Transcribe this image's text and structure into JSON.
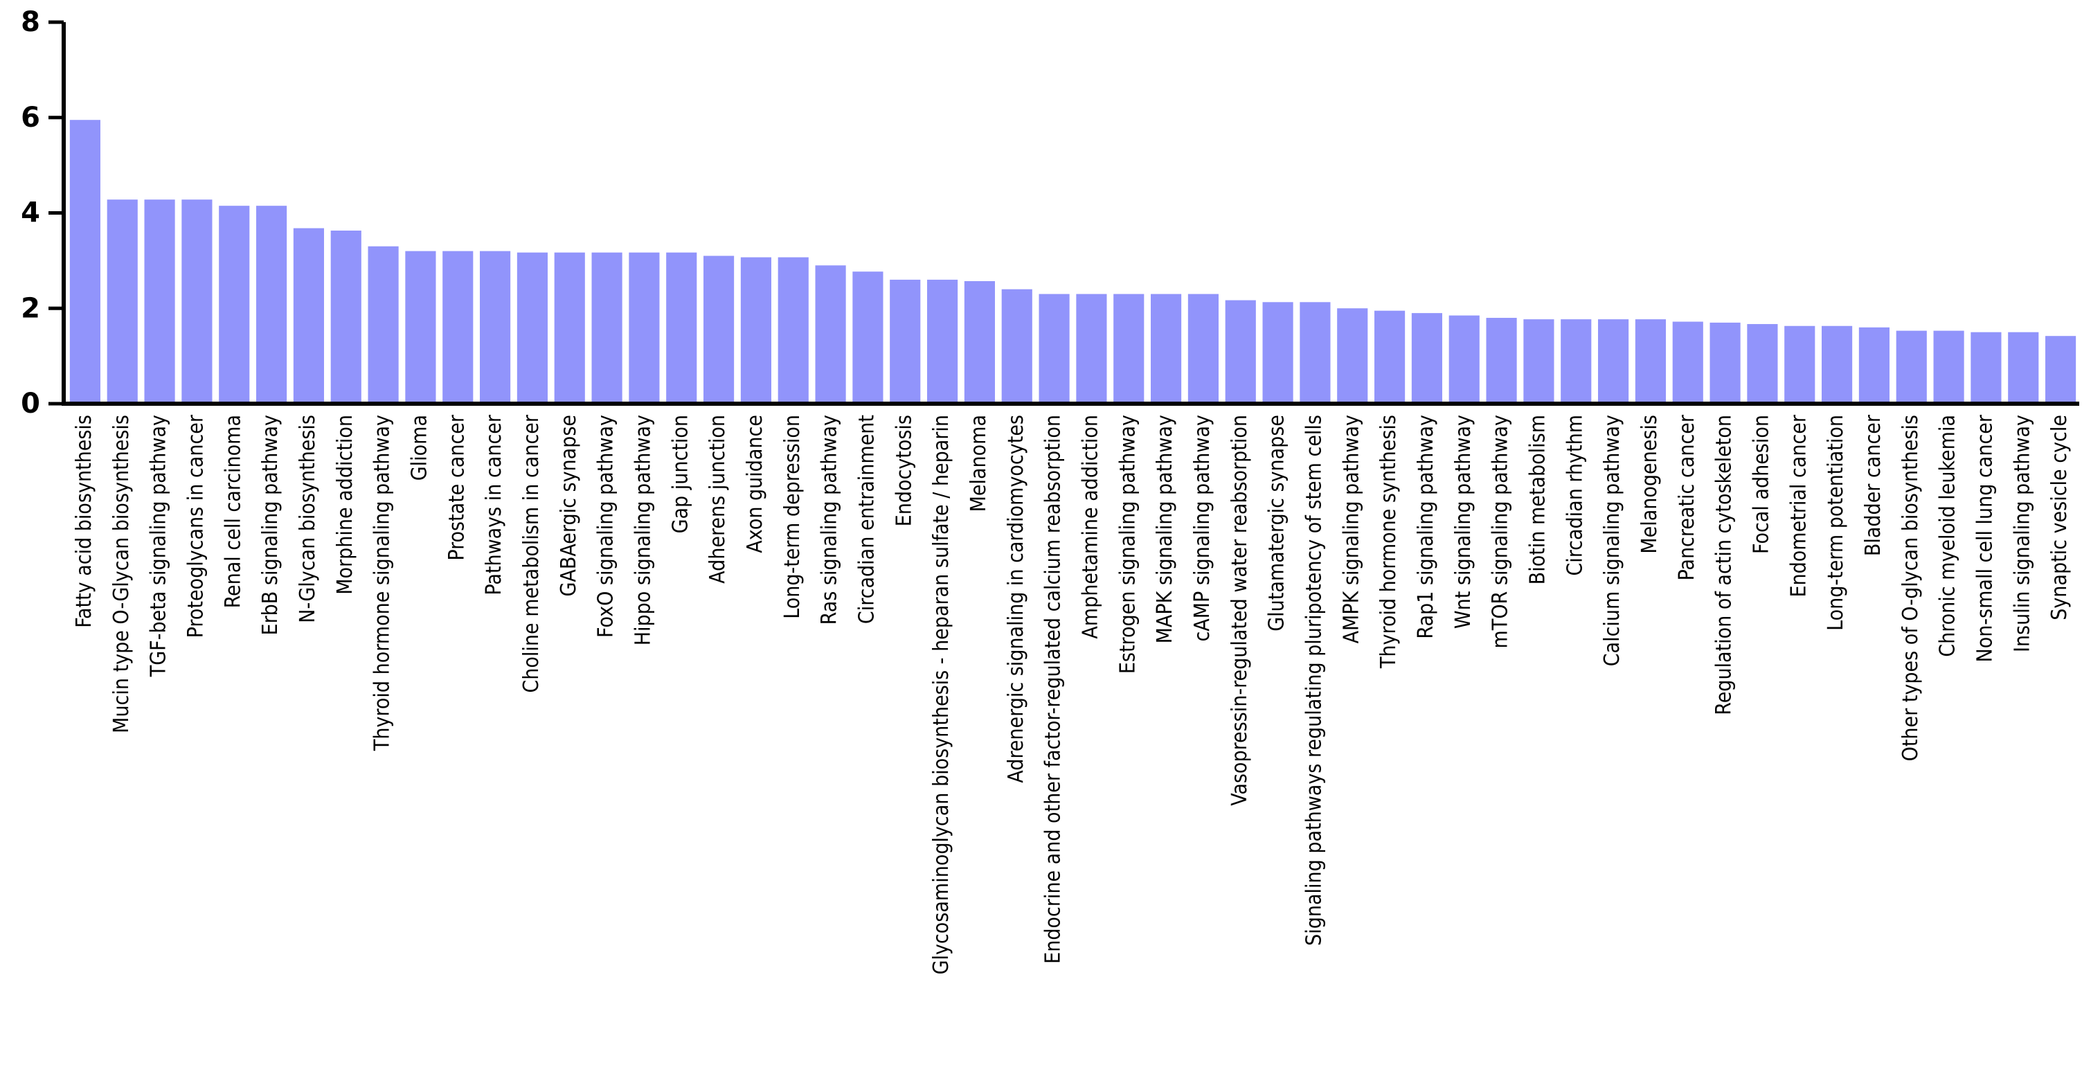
{
  "chart_data": {
    "type": "bar",
    "title": "",
    "xlabel": "",
    "ylabel": "",
    "ylim": [
      0,
      8
    ],
    "yticks": [
      0,
      2,
      4,
      6,
      8
    ],
    "bar_color": "#9194fb",
    "grid": false,
    "categories": [
      "Fatty acid biosynthesis",
      "Mucin type O-Glycan biosynthesis",
      "TGF-beta signaling pathway",
      "Proteoglycans in cancer",
      "Renal cell carcinoma",
      "ErbB signaling pathway",
      "N-Glycan biosynthesis",
      "Morphine addiction",
      "Thyroid hormone signaling pathway",
      "Glioma",
      "Prostate cancer",
      "Pathways in cancer",
      "Choline metabolism in cancer",
      "GABAergic synapse",
      "FoxO signaling pathway",
      "Hippo signaling pathway",
      "Gap junction",
      "Adherens junction",
      "Axon guidance",
      "Long-term depression",
      "Ras signaling pathway",
      "Circadian entrainment",
      "Endocytosis",
      "Glycosaminoglycan biosynthesis - heparan sulfate / heparin",
      "Melanoma",
      "Adrenergic signaling in cardiomyocytes",
      "Endocrine and other factor-regulated calcium reabsorption",
      "Amphetamine addiction",
      "Estrogen signaling pathway",
      "MAPK signaling pathway",
      "cAMP signaling pathway",
      "Vasopressin-regulated water reabsorption",
      "Glutamatergic synapse",
      "Signaling pathways regulating pluripotency of stem cells",
      "AMPK signaling pathway",
      "Thyroid hormone synthesis",
      "Rap1 signaling pathway",
      "Wnt signaling pathway",
      "mTOR signaling pathway",
      "Biotin metabolism",
      "Circadian rhythm",
      "Calcium signaling pathway",
      "Melanogenesis",
      "Pancreatic cancer",
      "Regulation of actin cytoskeleton",
      "Focal adhesion",
      "Endometrial cancer",
      "Long-term potentiation",
      "Bladder cancer",
      "Other types of O-glycan biosynthesis",
      "Chronic myeloid leukemia",
      "Non-small cell lung cancer",
      "Insulin signaling pathway",
      "Synaptic vesicle cycle"
    ],
    "values": [
      5.95,
      4.28,
      4.28,
      4.28,
      4.15,
      4.15,
      3.68,
      3.63,
      3.3,
      3.2,
      3.2,
      3.2,
      3.17,
      3.17,
      3.17,
      3.17,
      3.17,
      3.1,
      3.07,
      3.07,
      2.9,
      2.77,
      2.6,
      2.6,
      2.57,
      2.4,
      2.3,
      2.3,
      2.3,
      2.3,
      2.3,
      2.17,
      2.13,
      2.13,
      2.0,
      1.95,
      1.9,
      1.85,
      1.8,
      1.77,
      1.77,
      1.77,
      1.77,
      1.72,
      1.7,
      1.67,
      1.63,
      1.63,
      1.6,
      1.53,
      1.53,
      1.5,
      1.5,
      1.42
    ]
  }
}
